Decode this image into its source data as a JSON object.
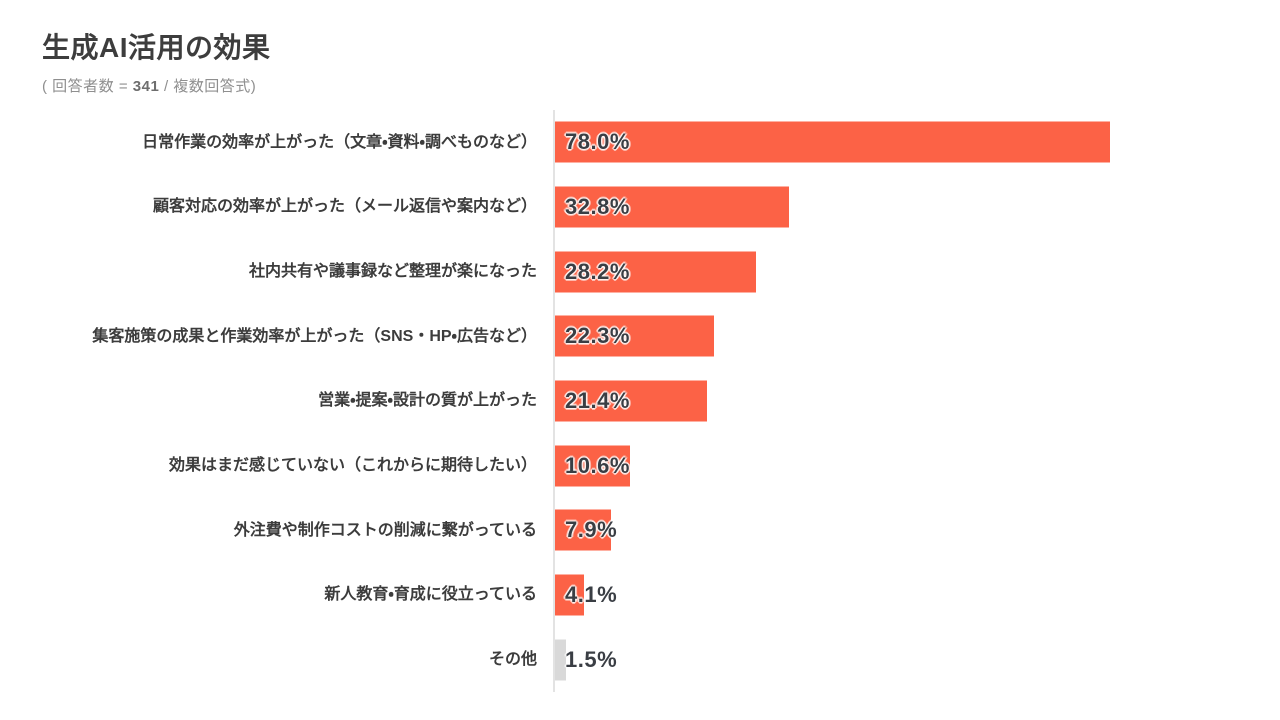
{
  "header": {
    "title": "生成AI活用の効果",
    "subtitle_prefix": "( 回答者数 = ",
    "respondents": "341",
    "subtitle_suffix": " / 複数回答式)"
  },
  "chart_data": {
    "type": "bar",
    "orientation": "horizontal",
    "title": "生成AI活用の効果",
    "subtitle": "( 回答者数 = 341 / 複数回答式)",
    "respondents": 341,
    "unit": "%",
    "xlim": [
      0,
      100
    ],
    "grid": false,
    "legend": "none",
    "value_labels": "inside-left",
    "categories": [
      "日常作業の効率が上がった（文章・資料・調べものなど）",
      "顧客対応の効率が上がった（メール返信や案内など）",
      "社内共有や議事録など整理が楽になった",
      "集客施策の成果と作業効率が上がった（SNS・HP・広告など）",
      "営業・提案・設計の質が上がった",
      "効果はまだ感じていない（これからに期待したい）",
      "外注費や制作コストの削減に繋がっている",
      "新人教育・育成に役立っている",
      "その他"
    ],
    "values": [
      78.0,
      32.8,
      28.2,
      22.3,
      21.4,
      10.6,
      7.9,
      4.1,
      1.5
    ],
    "value_label_texts": [
      "78.0%",
      "32.8%",
      "28.2%",
      "22.3%",
      "21.4%",
      "10.6%",
      "7.9%",
      "4.1%",
      "1.5%"
    ],
    "bar_colors": [
      "#fc6246",
      "#fc6246",
      "#fc6246",
      "#fc6246",
      "#fc6246",
      "#fc6246",
      "#fc6246",
      "#fc6246",
      "#d9d9d9"
    ],
    "colors": {
      "bar": "#fc6246",
      "other_bar": "#d9d9d9",
      "axis": "#e3e3e3",
      "category_label": "#3c3c3c",
      "value_label": "#3a3e44",
      "title": "#3d3d3d",
      "subtitle": "#8f8f8f",
      "background": "#ffffff"
    }
  }
}
